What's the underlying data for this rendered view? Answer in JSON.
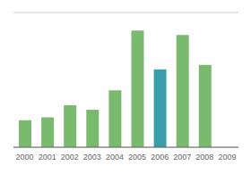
{
  "chart_data": {
    "type": "bar",
    "categories": [
      "2000",
      "2001",
      "2002",
      "2003",
      "2004",
      "2005",
      "2006",
      "2007",
      "2008",
      "2009"
    ],
    "values": [
      18,
      20,
      28,
      25,
      38,
      78,
      52,
      75,
      55,
      0
    ],
    "colors": [
      "#7aba6e",
      "#7aba6e",
      "#7aba6e",
      "#7aba6e",
      "#7aba6e",
      "#7aba6e",
      "#3a9eaa",
      "#7aba6e",
      "#7aba6e",
      "#7aba6e"
    ],
    "ylim": [
      0,
      90
    ],
    "yticks": [
      0,
      22.5,
      45,
      67.5,
      90
    ],
    "grid": true,
    "tick_labels": "x"
  }
}
